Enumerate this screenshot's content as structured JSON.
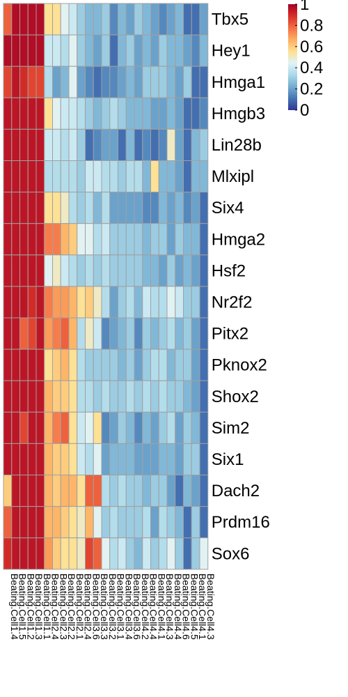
{
  "chart_data": {
    "type": "heatmap",
    "title": "",
    "xlabel": "",
    "ylabel": "",
    "rows": [
      "Tbx5",
      "Hey1",
      "Hmga1",
      "Hmgb3",
      "Lin28b",
      "Mlxipl",
      "Six4",
      "Hmga2",
      "Hsf2",
      "Nr2f2",
      "Pitx2",
      "Pknox2",
      "Shox2",
      "Sim2",
      "Six1",
      "Dach2",
      "Prdm16",
      "Sox6"
    ],
    "columns": [
      "Beating.Cell1.4",
      "Beating.Cell1.5",
      "Beating.Cell1.2",
      "Beating.Cell1.3",
      "Beating.Cell1.1",
      "Beating.Cell2.4",
      "Beating.Cell2.3",
      "Beating.Cell2.2",
      "Beating.Cell2.1",
      "Beating.Cell2.4",
      "Beating.Cell3.6",
      "Beating.Cell3.3",
      "Beating.Cell3.2",
      "Beating.Cell3.1",
      "Beating.Cell3.4",
      "Beating.Cell3.6",
      "Beating.Cell4.2",
      "Beating.Cell4.4",
      "Beating.Cell4.1",
      "Beating.Cell4.3",
      "Beating.Cell4.4",
      "Beating.Cell4.6",
      "Beating.Cell4.5",
      "Beating.Cell4.1",
      "Beating.Cell4.3"
    ],
    "values": [
      [
        0.8,
        0.97,
        0.97,
        0.97,
        0.97,
        0.55,
        0.55,
        0.45,
        0.4,
        0.3,
        0.25,
        0.25,
        0.3,
        0.15,
        0.25,
        0.2,
        0.3,
        0.25,
        0.2,
        0.15,
        0.2,
        0.25,
        0.1,
        0.1,
        0.2
      ],
      [
        0.97,
        0.97,
        0.97,
        0.97,
        0.97,
        0.4,
        0.4,
        0.35,
        0.45,
        0.3,
        0.25,
        0.2,
        0.3,
        0.1,
        0.25,
        0.3,
        0.2,
        0.25,
        0.2,
        0.3,
        0.25,
        0.25,
        0.2,
        0.15,
        0.25
      ],
      [
        0.85,
        0.95,
        0.9,
        0.85,
        0.85,
        0.35,
        0.2,
        0.25,
        0.45,
        0.2,
        0.15,
        0.1,
        0.15,
        0.15,
        0.2,
        0.25,
        0.2,
        0.3,
        0.3,
        0.3,
        0.25,
        0.2,
        0.3,
        0.1,
        0.1
      ],
      [
        0.95,
        0.95,
        0.95,
        0.95,
        0.95,
        0.55,
        0.45,
        0.4,
        0.4,
        0.35,
        0.3,
        0.25,
        0.3,
        0.35,
        0.3,
        0.25,
        0.25,
        0.25,
        0.2,
        0.2,
        0.25,
        0.2,
        0.1,
        0.1,
        0.15
      ],
      [
        0.95,
        0.95,
        0.95,
        0.95,
        0.95,
        0.4,
        0.4,
        0.35,
        0.4,
        0.3,
        0.1,
        0.15,
        0.2,
        0.2,
        0.1,
        0.25,
        0.1,
        0.15,
        0.1,
        0.15,
        0.5,
        0.2,
        0.1,
        0.25,
        0.3
      ],
      [
        0.95,
        0.95,
        0.95,
        0.95,
        0.95,
        0.35,
        0.35,
        0.35,
        0.35,
        0.3,
        0.4,
        0.4,
        0.35,
        0.35,
        0.3,
        0.35,
        0.35,
        0.25,
        0.55,
        0.25,
        0.25,
        0.2,
        0.1,
        0.25,
        0.25
      ],
      [
        0.95,
        0.95,
        0.95,
        0.95,
        0.95,
        0.55,
        0.55,
        0.5,
        0.35,
        0.3,
        0.35,
        0.25,
        0.35,
        0.2,
        0.2,
        0.2,
        0.2,
        0.15,
        0.15,
        0.25,
        0.2,
        0.25,
        0.15,
        0.2,
        0.1
      ],
      [
        0.95,
        0.95,
        0.95,
        0.95,
        0.95,
        0.75,
        0.75,
        0.65,
        0.6,
        0.45,
        0.45,
        0.35,
        0.4,
        0.3,
        0.3,
        0.3,
        0.3,
        0.25,
        0.3,
        0.3,
        0.2,
        0.3,
        0.25,
        0.25,
        0.1
      ],
      [
        0.95,
        0.95,
        0.95,
        0.95,
        0.95,
        0.45,
        0.5,
        0.4,
        0.35,
        0.3,
        0.35,
        0.3,
        0.35,
        0.3,
        0.3,
        0.3,
        0.3,
        0.25,
        0.25,
        0.2,
        0.3,
        0.2,
        0.25,
        0.2,
        0.1
      ],
      [
        0.95,
        0.95,
        0.95,
        0.9,
        0.95,
        0.75,
        0.7,
        0.7,
        0.65,
        0.55,
        0.6,
        0.5,
        0.35,
        0.2,
        0.3,
        0.35,
        0.25,
        0.4,
        0.35,
        0.35,
        0.45,
        0.4,
        0.3,
        0.3,
        0.1
      ],
      [
        0.95,
        0.95,
        0.8,
        0.85,
        0.95,
        0.7,
        0.75,
        0.8,
        0.65,
        0.35,
        0.5,
        0.4,
        0.15,
        0.2,
        0.25,
        0.3,
        0.15,
        0.3,
        0.25,
        0.3,
        0.35,
        0.25,
        0.3,
        0.2,
        0.1
      ],
      [
        0.95,
        0.95,
        0.95,
        0.95,
        0.95,
        0.55,
        0.6,
        0.65,
        0.55,
        0.35,
        0.3,
        0.3,
        0.3,
        0.3,
        0.25,
        0.3,
        0.2,
        0.3,
        0.35,
        0.35,
        0.25,
        0.3,
        0.3,
        0.2,
        0.1
      ],
      [
        0.95,
        0.95,
        0.95,
        0.95,
        0.95,
        0.65,
        0.6,
        0.6,
        0.55,
        0.35,
        0.35,
        0.3,
        0.35,
        0.3,
        0.3,
        0.35,
        0.3,
        0.35,
        0.3,
        0.35,
        0.3,
        0.3,
        0.25,
        0.2,
        0.1
      ],
      [
        0.95,
        0.95,
        0.85,
        0.95,
        0.95,
        0.65,
        0.75,
        0.8,
        0.55,
        0.4,
        0.45,
        0.55,
        0.15,
        0.2,
        0.3,
        0.25,
        0.15,
        0.25,
        0.2,
        0.3,
        0.35,
        0.2,
        0.3,
        0.25,
        0.1
      ],
      [
        0.95,
        0.95,
        0.95,
        0.95,
        0.95,
        0.65,
        0.6,
        0.6,
        0.55,
        0.4,
        0.35,
        0.45,
        0.2,
        0.25,
        0.25,
        0.25,
        0.2,
        0.2,
        0.2,
        0.25,
        0.25,
        0.2,
        0.3,
        0.3,
        0.1
      ],
      [
        0.6,
        0.95,
        0.95,
        0.95,
        0.95,
        0.65,
        0.6,
        0.65,
        0.65,
        0.55,
        0.8,
        0.8,
        0.35,
        0.3,
        0.35,
        0.3,
        0.3,
        0.25,
        0.3,
        0.3,
        0.2,
        0.1,
        0.25,
        0.2,
        0.1
      ],
      [
        0.8,
        0.95,
        0.95,
        0.95,
        0.95,
        0.65,
        0.65,
        0.6,
        0.55,
        0.5,
        0.65,
        0.45,
        0.3,
        0.35,
        0.3,
        0.3,
        0.3,
        0.35,
        0.2,
        0.35,
        0.3,
        0.25,
        0.1,
        0.3,
        0.1
      ],
      [
        0.9,
        0.95,
        0.95,
        0.95,
        0.95,
        0.7,
        0.6,
        0.55,
        0.55,
        0.5,
        0.85,
        0.8,
        0.45,
        0.35,
        0.4,
        0.3,
        0.25,
        0.4,
        0.3,
        0.35,
        0.45,
        0.3,
        0.1,
        0.3,
        0.45
      ]
    ],
    "legend": {
      "ticks": [
        "0",
        "0.2",
        "0.4",
        "0.6",
        "0.8",
        "1"
      ],
      "min": 0,
      "max": 1,
      "placement": "top-right"
    },
    "colors": [
      "#313695",
      "#4575b4",
      "#74add1",
      "#abd9e9",
      "#e0f3f8",
      "#fee090",
      "#fdae61",
      "#f46d43",
      "#d73027",
      "#a50026"
    ]
  }
}
